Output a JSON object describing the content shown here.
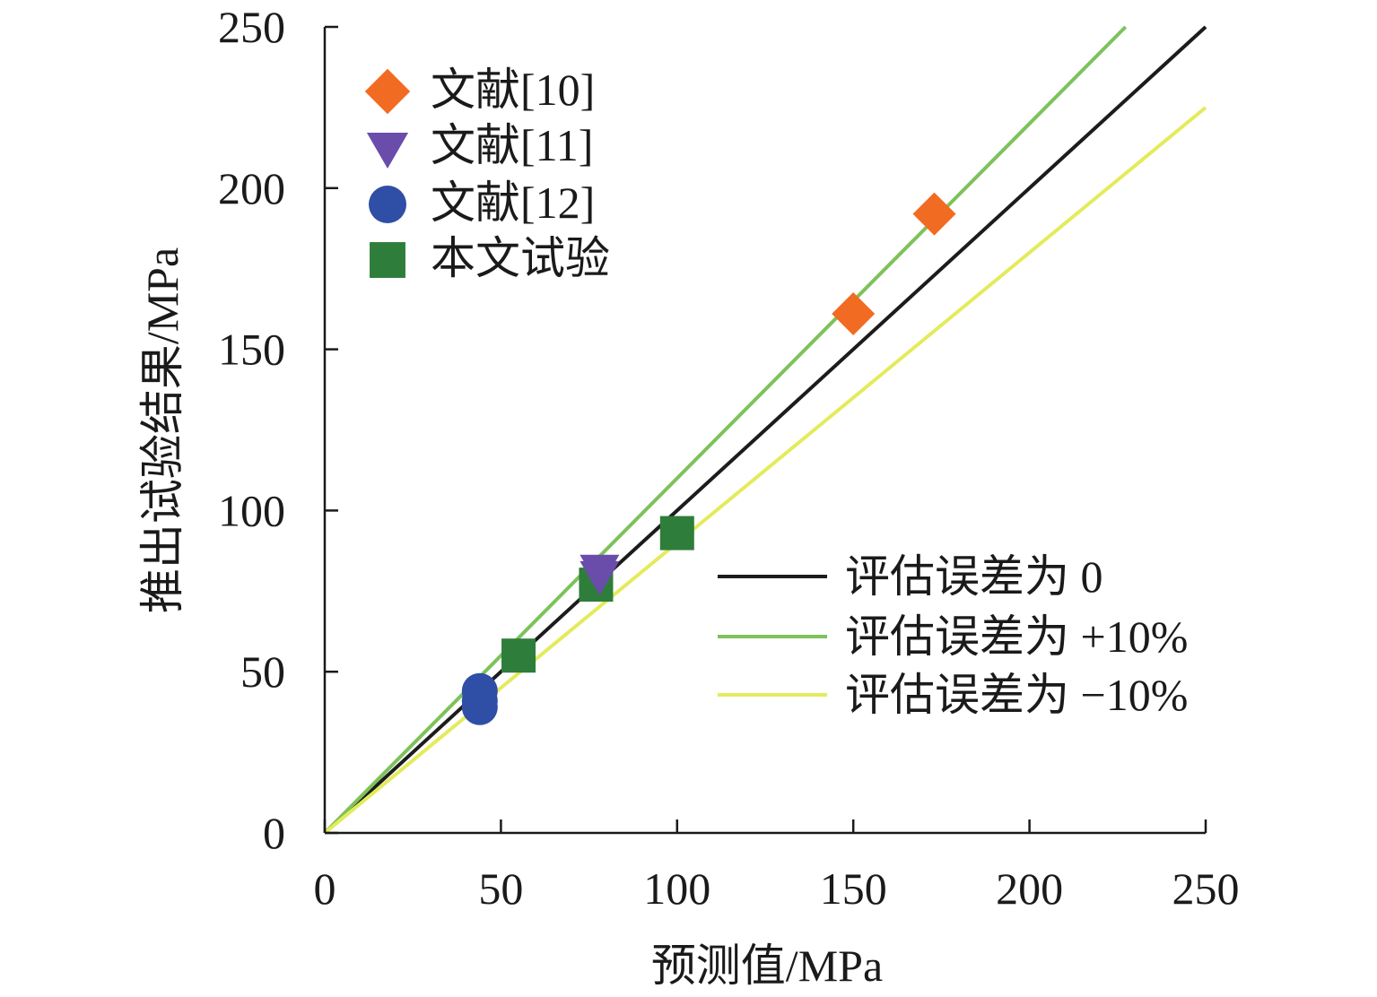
{
  "chart_data": {
    "type": "scatter",
    "xlabel": "预测值/MPa",
    "ylabel": "推出试验结果/MPa",
    "xlim": [
      0,
      250
    ],
    "ylim": [
      0,
      250
    ],
    "xticks": [
      0,
      50,
      100,
      150,
      200,
      250
    ],
    "yticks": [
      0,
      50,
      100,
      150,
      200,
      250
    ],
    "grid": false,
    "legend": {
      "markers": "top-left",
      "lines": "bottom-right"
    },
    "series": [
      {
        "name": "文献[10]",
        "marker": "diamond",
        "color": "#F26B22",
        "points": [
          [
            150,
            161
          ],
          [
            173,
            192
          ]
        ]
      },
      {
        "name": "文献[11]",
        "marker": "triangle-down",
        "color": "#6A4CAB",
        "points": [
          [
            78,
            81
          ],
          [
            78,
            79
          ]
        ]
      },
      {
        "name": "文献[12]",
        "marker": "circle",
        "color": "#2F4EA6",
        "points": [
          [
            44,
            44
          ],
          [
            44,
            41
          ],
          [
            44,
            39
          ]
        ]
      },
      {
        "name": "本文试验",
        "marker": "square",
        "color": "#2F7D3A",
        "points": [
          [
            55,
            55
          ],
          [
            77,
            77
          ],
          [
            100,
            93
          ]
        ]
      }
    ],
    "reference_lines": [
      {
        "name": "评估误差为 0",
        "slope": 1.0,
        "color": "#1C1C1C"
      },
      {
        "name": "评估误差为 +10%",
        "slope": 1.1,
        "color": "#7DC25A"
      },
      {
        "name": "评估误差为 −10%",
        "slope": 0.9,
        "color": "#E4EB5C"
      }
    ]
  }
}
